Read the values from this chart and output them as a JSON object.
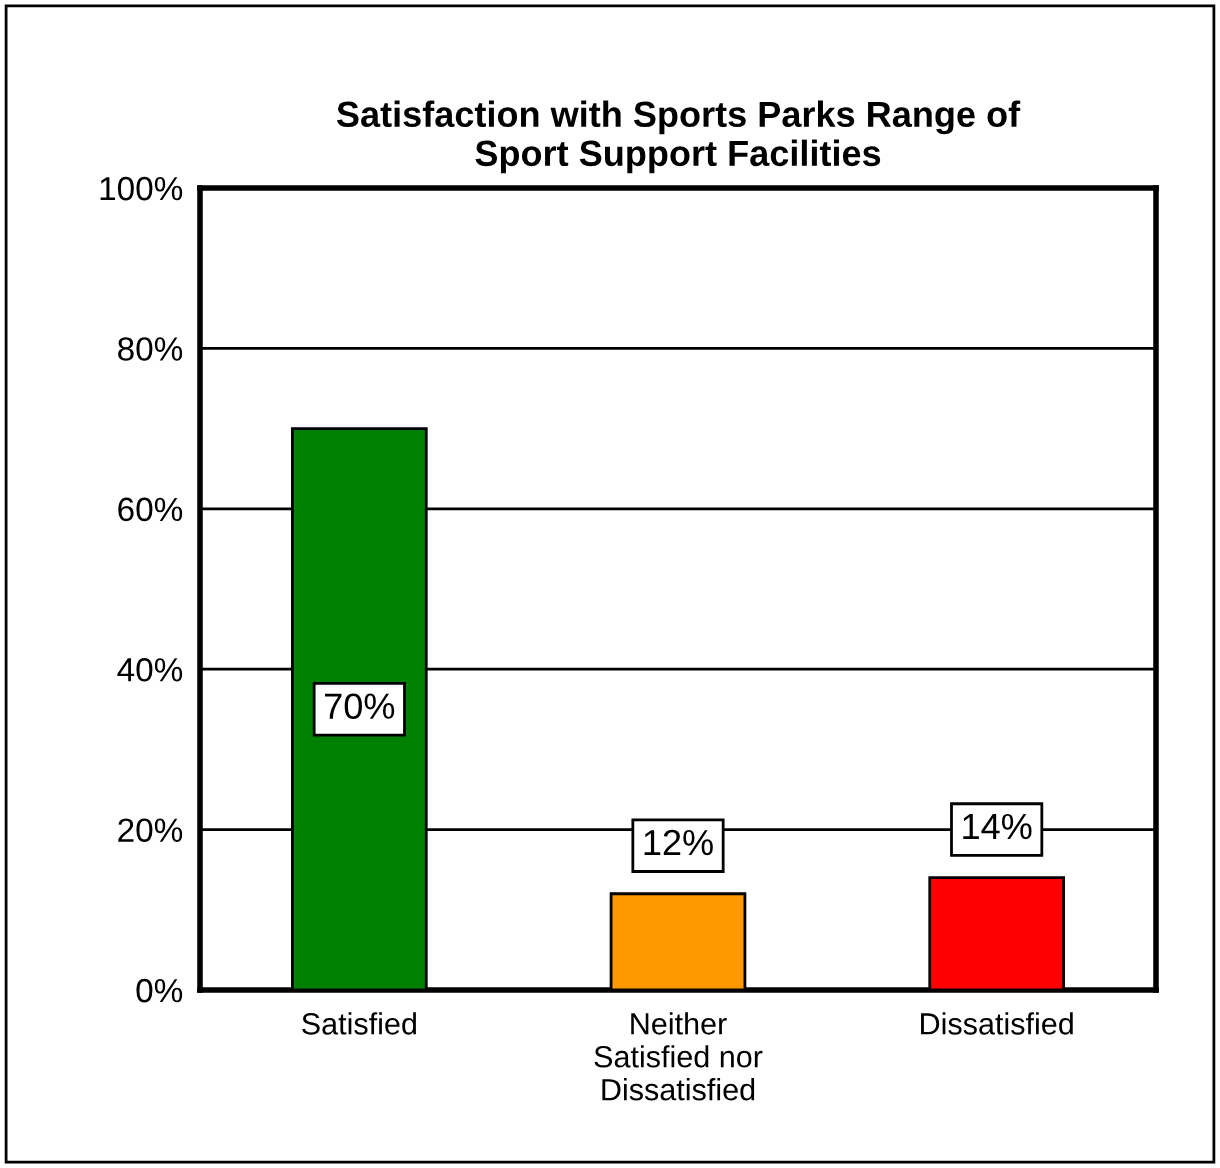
{
  "chart_data": {
    "type": "bar",
    "title": "Satisfaction with Sports Parks Range of\nSport Support Facilities",
    "categories": [
      "Satisfied",
      "Neither\nSatisfied nor\nDissatisfied",
      "Dissatisfied"
    ],
    "values": [
      70,
      12,
      14
    ],
    "colors": [
      "#008000",
      "#ff9900",
      "#ff0000"
    ],
    "value_labels": [
      "70%",
      "12%",
      "14%"
    ],
    "ylim": [
      0,
      100
    ],
    "yticks": [
      {
        "value": 0,
        "label": "0%"
      },
      {
        "value": 20,
        "label": "20%"
      },
      {
        "value": 40,
        "label": "40%"
      },
      {
        "value": 60,
        "label": "60%"
      },
      {
        "value": 80,
        "label": "80%"
      },
      {
        "value": 100,
        "label": "100%"
      }
    ],
    "grid": "y"
  }
}
